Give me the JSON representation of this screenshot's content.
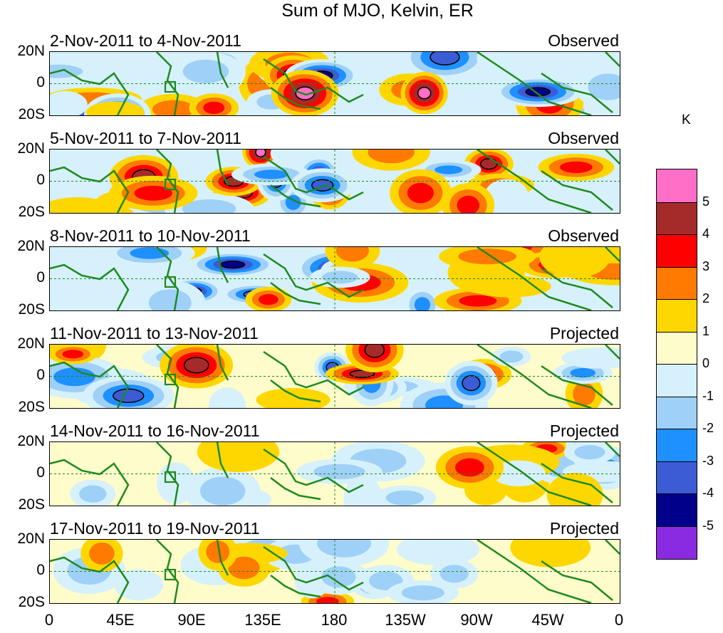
{
  "title": "Sum of MJO, Kelvin, ER",
  "panels": [
    {
      "date": "2-Nov-2011 to 4-Nov-2011",
      "status": "Observed"
    },
    {
      "date": "5-Nov-2011 to 7-Nov-2011",
      "status": "Observed"
    },
    {
      "date": "8-Nov-2011 to 10-Nov-2011",
      "status": "Observed"
    },
    {
      "date": "11-Nov-2011 to 13-Nov-2011",
      "status": "Projected"
    },
    {
      "date": "14-Nov-2011 to 16-Nov-2011",
      "status": "Projected"
    },
    {
      "date": "17-Nov-2011 to 19-Nov-2011",
      "status": "Projected"
    }
  ],
  "lat_labels": [
    "20N",
    "0",
    "20S"
  ],
  "lon_labels": [
    "0",
    "45E",
    "90E",
    "135E",
    "180",
    "135W",
    "90W",
    "45W",
    "0"
  ],
  "colorbar": {
    "unit": "K",
    "ticks": [
      "5",
      "4",
      "3",
      "2",
      "1",
      "0",
      "-1",
      "-2",
      "-3",
      "-4",
      "-5"
    ],
    "colors": [
      "#ff6ec7",
      "#a52a2a",
      "#ff0000",
      "#ff7a00",
      "#ffd700",
      "#fffccc",
      "#d6f1fb",
      "#9fd0f8",
      "#1e90ff",
      "#3c5cd6",
      "#00008b",
      "#8a2be2"
    ]
  }
}
